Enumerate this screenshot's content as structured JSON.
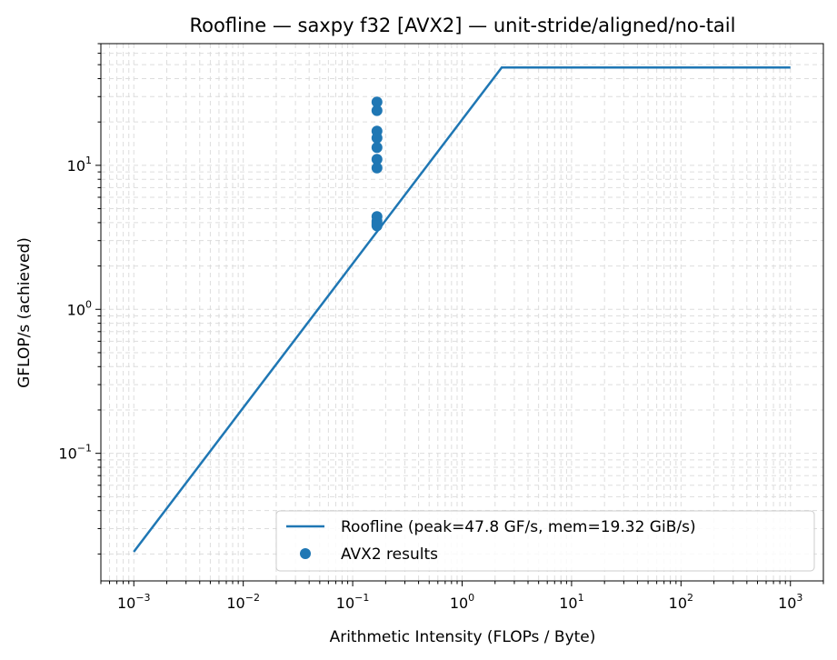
{
  "chart_data": {
    "type": "scatter",
    "title": "Roofline — saxpy f32 [AVX2] — unit-stride/aligned/no-tail",
    "xlabel": "Arithmetic Intensity (FLOPs / Byte)",
    "ylabel": "GFLOP/s (achieved)",
    "xscale": "log",
    "yscale": "log",
    "xlim": [
      0.0005,
      2000
    ],
    "ylim": [
      0.013,
      70
    ],
    "grid": true,
    "legend_position": "lower right",
    "x_ticks": [
      {
        "value": 0.001,
        "base": "10",
        "exp": "−3"
      },
      {
        "value": 0.01,
        "base": "10",
        "exp": "−2"
      },
      {
        "value": 0.1,
        "base": "10",
        "exp": "−1"
      },
      {
        "value": 1,
        "base": "10",
        "exp": "0"
      },
      {
        "value": 10,
        "base": "10",
        "exp": "1"
      },
      {
        "value": 100,
        "base": "10",
        "exp": "2"
      },
      {
        "value": 1000,
        "base": "10",
        "exp": "3"
      }
    ],
    "y_ticks": [
      {
        "value": 0.1,
        "base": "10",
        "exp": "−1"
      },
      {
        "value": 1,
        "base": "10",
        "exp": "0"
      },
      {
        "value": 10,
        "base": "10",
        "exp": "1"
      }
    ],
    "series": [
      {
        "name": "Roofline (peak=47.8 GF/s, mem=19.32 GiB/s)",
        "type": "line",
        "color": "#1f77b4",
        "x": [
          0.001,
          2.3,
          1000
        ],
        "y": [
          0.0207,
          47.8,
          47.8
        ]
      },
      {
        "name": "AVX2 results",
        "type": "scatter",
        "color": "#1f77b4",
        "x": [
          0.1667,
          0.1667,
          0.1667,
          0.1667,
          0.1667,
          0.1667,
          0.1667,
          0.1667,
          0.1667,
          0.1667,
          0.1667
        ],
        "y": [
          27.5,
          24.0,
          17.3,
          15.5,
          13.3,
          11.0,
          9.6,
          4.4,
          4.1,
          3.9,
          3.8
        ]
      }
    ]
  }
}
